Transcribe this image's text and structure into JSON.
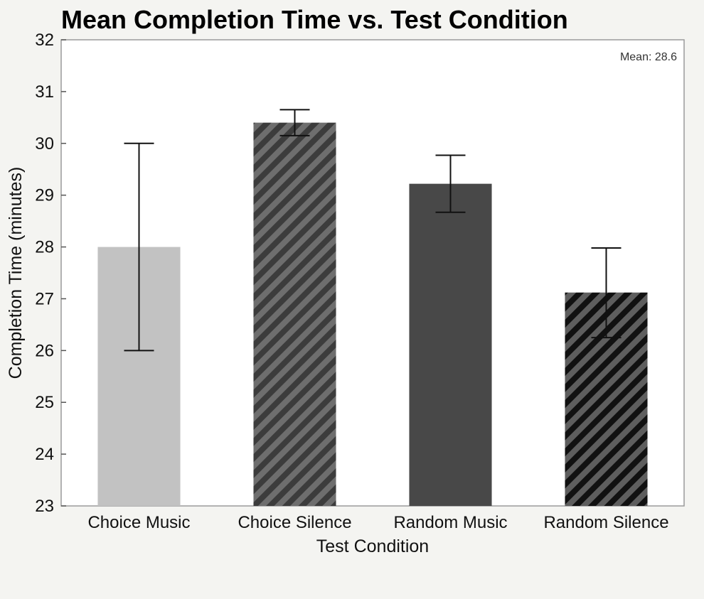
{
  "chart_data": {
    "type": "bar",
    "title": "Mean Completion Time vs. Test Condition",
    "xlabel": "Test Condition",
    "ylabel": "Completion Time (minutes)",
    "ylim": [
      23,
      32
    ],
    "yticks": [
      "23",
      "24",
      "25",
      "26",
      "27",
      "28",
      "29",
      "30",
      "31",
      "32"
    ],
    "categories": [
      "Choice Music",
      "Choice Silence",
      "Random Music",
      "Random Silence"
    ],
    "values": [
      28.0,
      30.4,
      29.22,
      27.12
    ],
    "error_low": [
      26.0,
      30.15,
      28.67,
      26.25
    ],
    "error_high": [
      30.0,
      30.65,
      29.77,
      27.98
    ],
    "bar_styles": [
      {
        "fill": "#c2c2c2",
        "pattern": "solid"
      },
      {
        "fill": "#6e6e6e",
        "pattern": "hatch",
        "stripe": "#3c3c3c"
      },
      {
        "fill": "#484848",
        "pattern": "solid"
      },
      {
        "fill": "#5e5e5e",
        "pattern": "hatch",
        "stripe": "#111111"
      }
    ],
    "annotation": "Mean: 28.6",
    "annotation_position": "top-right",
    "grid": false,
    "legend": false
  },
  "colors": {
    "background": "#f4f4f1",
    "plot_background": "#ffffff",
    "axis_frame": "#9a9a9a",
    "error_bar": "#111111"
  }
}
